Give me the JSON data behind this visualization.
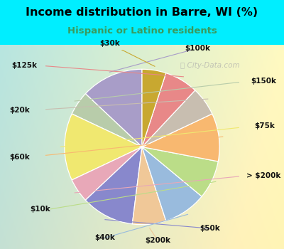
{
  "title": "Income distribution in Barre, WI (%)",
  "subtitle": "Hispanic or Latino residents",
  "title_color": "#000000",
  "subtitle_color": "#3a9a5c",
  "bg_cyan": "#00eeff",
  "watermark": "ⓘ City-Data.com",
  "labels": [
    "$100k",
    "$150k",
    "$75k",
    "> $200k",
    "$50k",
    "$200k",
    "$40k",
    "$10k",
    "$60k",
    "$20k",
    "$125k",
    "$30k"
  ],
  "sizes": [
    13,
    5,
    14,
    5,
    11,
    7,
    9,
    8,
    10,
    6,
    7,
    5
  ],
  "colors": [
    "#a89dc8",
    "#b8ccaa",
    "#f0e870",
    "#e8a8b8",
    "#8888cc",
    "#f0c898",
    "#99bbdd",
    "#bbdd88",
    "#f8b870",
    "#c8beb0",
    "#e88888",
    "#c8a830"
  ],
  "startangle": 90,
  "figsize": [
    4.0,
    3.5
  ],
  "dpi": 100
}
